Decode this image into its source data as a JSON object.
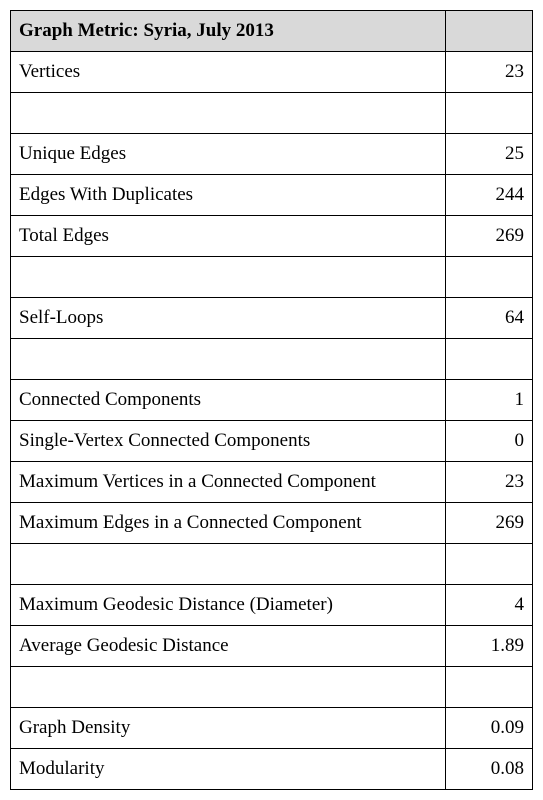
{
  "table": {
    "type": "table",
    "header": {
      "title": "Graph Metric: Syria, July 2013",
      "background_color": "#d9d9d9"
    },
    "columns": [
      "label",
      "value"
    ],
    "column_widths": [
      "auto",
      "70px"
    ],
    "value_alignment": "right",
    "border_color": "#000000",
    "background_color": "#ffffff",
    "font_family": "Times New Roman",
    "font_size": 19,
    "rows": [
      {
        "label": "Vertices",
        "value": "23"
      },
      {
        "empty": true
      },
      {
        "label": "Unique Edges",
        "value": "25"
      },
      {
        "label": "Edges With Duplicates",
        "value": "244"
      },
      {
        "label": "Total Edges",
        "value": "269"
      },
      {
        "empty": true
      },
      {
        "label": "Self-Loops",
        "value": "64"
      },
      {
        "empty": true
      },
      {
        "label": "Connected Components",
        "value": "1"
      },
      {
        "label": "Single-Vertex Connected Components",
        "value": "0"
      },
      {
        "label": "Maximum Vertices in a Connected Component",
        "value": "23"
      },
      {
        "label": "Maximum Edges in a Connected Component",
        "value": "269"
      },
      {
        "empty": true
      },
      {
        "label": "Maximum Geodesic Distance (Diameter)",
        "value": "4"
      },
      {
        "label": "Average Geodesic Distance",
        "value": "1.89"
      },
      {
        "empty": true
      },
      {
        "label": "Graph Density",
        "value": "0.09"
      },
      {
        "label": "Modularity",
        "value": "0.08"
      }
    ]
  }
}
